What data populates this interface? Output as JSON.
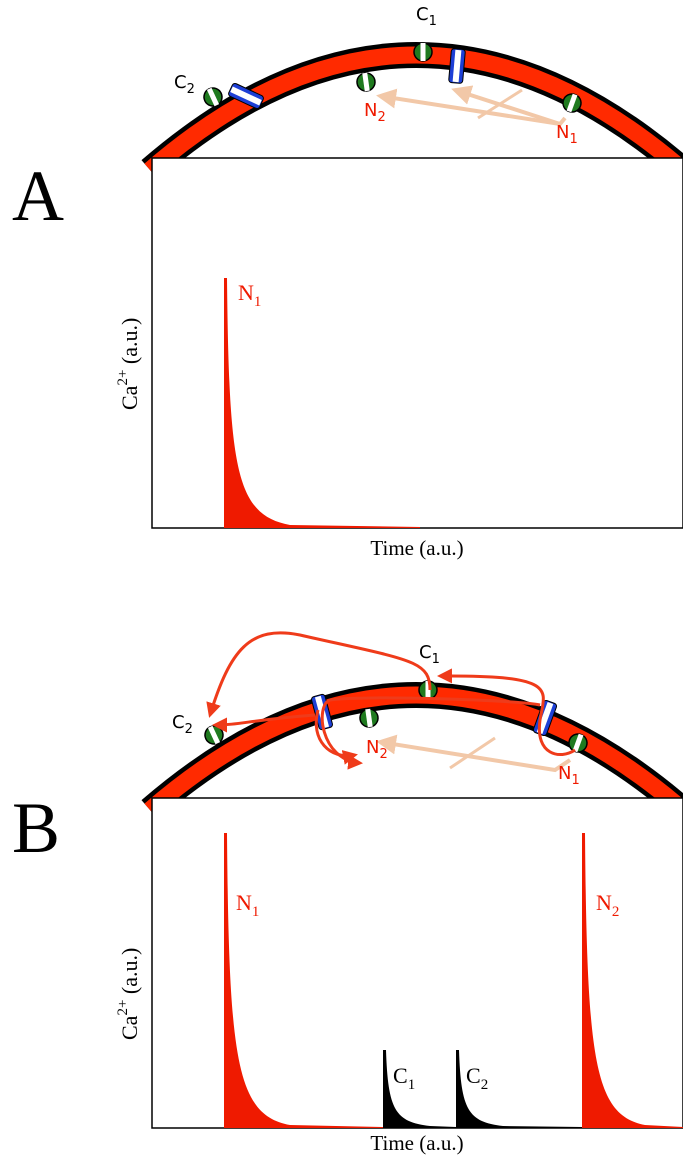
{
  "panels": [
    {
      "letter": "A",
      "membrane_labels": [
        {
          "base": "C",
          "sub": "2"
        },
        {
          "base": "C",
          "sub": "1"
        },
        {
          "base": "N",
          "sub": "2"
        },
        {
          "base": "N",
          "sub": "1"
        }
      ],
      "y_label": {
        "base": "Ca",
        "sup": "2+",
        "rest": " (a.u.)"
      },
      "x_label": "Time  (a.u.)",
      "trace_labels": [
        {
          "base": "N",
          "sub": "1"
        }
      ]
    },
    {
      "letter": "B",
      "membrane_labels": [
        {
          "base": "C",
          "sub": "2"
        },
        {
          "base": "C",
          "sub": "1"
        },
        {
          "base": "N",
          "sub": "2"
        },
        {
          "base": "N",
          "sub": "1"
        }
      ],
      "y_label": {
        "base": "Ca",
        "sup": "2+",
        "rest": " (a.u.)"
      },
      "x_label": "Time (a.u.)",
      "trace_labels": [
        {
          "base": "N",
          "sub": "1"
        },
        {
          "base": "C",
          "sub": "1"
        },
        {
          "base": "C",
          "sub": "2"
        },
        {
          "base": "N",
          "sub": "2"
        }
      ]
    }
  ]
}
